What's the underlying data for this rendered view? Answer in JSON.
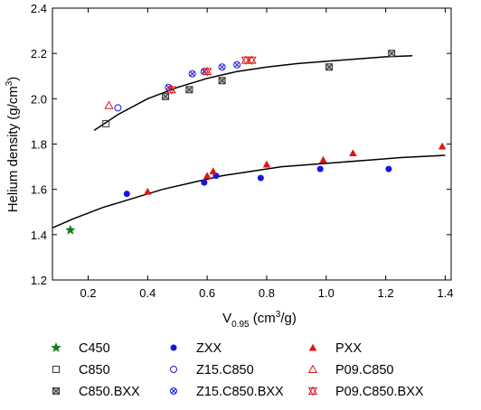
{
  "chart_data": {
    "type": "scatter",
    "title": "",
    "xlabel": {
      "base": "V",
      "sub": "0.95",
      "pre": " (cm",
      "sup": "3",
      "post": "/g)"
    },
    "ylabel": {
      "pre": "Helium density (g/cm",
      "sup": "3",
      "post": ")"
    },
    "xlim": [
      0.08,
      1.42
    ],
    "ylim": [
      1.2,
      2.4
    ],
    "xticks": [
      "0.2",
      "0.4",
      "0.6",
      "0.8",
      "1.0",
      "1.2",
      "1.4"
    ],
    "xtick_values": [
      0.2,
      0.4,
      0.6,
      0.8,
      1.0,
      1.2,
      1.4
    ],
    "yticks": [
      "1.2",
      "1.4",
      "1.6",
      "1.8",
      "2.0",
      "2.2",
      "2.4"
    ],
    "ytick_values": [
      1.2,
      1.4,
      1.6,
      1.8,
      2.0,
      2.2,
      2.4
    ],
    "grid": false,
    "legend_position": "bottom",
    "series": [
      {
        "name": "C450",
        "marker": "star",
        "color": "#1a7a1a",
        "points": [
          [
            0.14,
            1.42
          ]
        ]
      },
      {
        "name": "ZXX",
        "marker": "circle-filled",
        "color": "#1515e0",
        "points": [
          [
            0.33,
            1.58
          ],
          [
            0.59,
            1.63
          ],
          [
            0.63,
            1.66
          ],
          [
            0.78,
            1.65
          ],
          [
            0.98,
            1.69
          ],
          [
            1.21,
            1.69
          ]
        ]
      },
      {
        "name": "PXX",
        "marker": "triangle-filled",
        "color": "#e01515",
        "points": [
          [
            0.4,
            1.59
          ],
          [
            0.6,
            1.66
          ],
          [
            0.62,
            1.68
          ],
          [
            0.8,
            1.71
          ],
          [
            0.99,
            1.73
          ],
          [
            1.09,
            1.76
          ],
          [
            1.39,
            1.79
          ]
        ]
      },
      {
        "name": "C850",
        "marker": "square-open",
        "color": "#333333",
        "points": [
          [
            0.26,
            1.89
          ]
        ]
      },
      {
        "name": "Z15.C850",
        "marker": "circle-open",
        "color": "#1515e0",
        "points": [
          [
            0.3,
            1.96
          ]
        ]
      },
      {
        "name": "P09.C850",
        "marker": "triangle-open",
        "color": "#e01515",
        "points": [
          [
            0.27,
            1.97
          ]
        ]
      },
      {
        "name": "C850.BXX",
        "marker": "square-x",
        "color": "#333333",
        "points": [
          [
            0.46,
            2.01
          ],
          [
            0.54,
            2.04
          ],
          [
            0.65,
            2.08
          ],
          [
            1.01,
            2.14
          ],
          [
            1.22,
            2.2
          ]
        ]
      },
      {
        "name": "Z15.C850.BXX",
        "marker": "circle-x",
        "color": "#1515e0",
        "points": [
          [
            0.47,
            2.05
          ],
          [
            0.55,
            2.11
          ],
          [
            0.59,
            2.12
          ],
          [
            0.65,
            2.14
          ],
          [
            0.7,
            2.15
          ]
        ]
      },
      {
        "name": "P09.C850.BXX",
        "marker": "triangle-x",
        "color": "#e01515",
        "points": [
          [
            0.48,
            2.04
          ],
          [
            0.6,
            2.12
          ],
          [
            0.73,
            2.17
          ],
          [
            0.75,
            2.17
          ]
        ]
      }
    ],
    "fit_curves": [
      {
        "points": [
          [
            0.08,
            1.43
          ],
          [
            0.15,
            1.47
          ],
          [
            0.25,
            1.52
          ],
          [
            0.35,
            1.56
          ],
          [
            0.45,
            1.6
          ],
          [
            0.55,
            1.63
          ],
          [
            0.65,
            1.66
          ],
          [
            0.75,
            1.68
          ],
          [
            0.85,
            1.7
          ],
          [
            0.95,
            1.71
          ],
          [
            1.05,
            1.72
          ],
          [
            1.15,
            1.73
          ],
          [
            1.25,
            1.74
          ],
          [
            1.4,
            1.75
          ]
        ]
      },
      {
        "points": [
          [
            0.22,
            1.86
          ],
          [
            0.3,
            1.93
          ],
          [
            0.4,
            2.0
          ],
          [
            0.5,
            2.05
          ],
          [
            0.6,
            2.09
          ],
          [
            0.7,
            2.12
          ],
          [
            0.8,
            2.14
          ],
          [
            0.9,
            2.155
          ],
          [
            1.0,
            2.165
          ],
          [
            1.1,
            2.175
          ],
          [
            1.2,
            2.185
          ],
          [
            1.29,
            2.19
          ]
        ]
      }
    ],
    "legend": [
      {
        "name": "C450",
        "marker": "star",
        "color": "#1a7a1a"
      },
      {
        "name": "C850",
        "marker": "square-open",
        "color": "#333333"
      },
      {
        "name": "C850.BXX",
        "marker": "square-x",
        "color": "#333333"
      },
      {
        "name": "ZXX",
        "marker": "circle-filled",
        "color": "#1515e0"
      },
      {
        "name": "Z15.C850",
        "marker": "circle-open",
        "color": "#1515e0"
      },
      {
        "name": "Z15.C850.BXX",
        "marker": "circle-x",
        "color": "#1515e0"
      },
      {
        "name": "PXX",
        "marker": "triangle-filled",
        "color": "#e01515"
      },
      {
        "name": "P09.C850",
        "marker": "triangle-open",
        "color": "#e01515"
      },
      {
        "name": "P09.C850.BXX",
        "marker": "triangle-x",
        "color": "#e01515"
      }
    ]
  }
}
